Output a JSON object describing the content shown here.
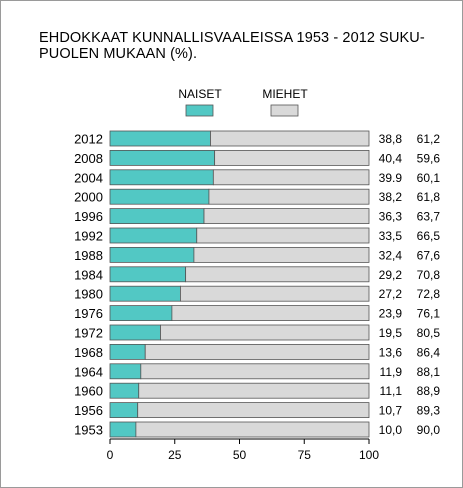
{
  "title_line1": "EHDOKKAAT KUNNALLISVAALEISSA 1953 - 2012 SUKU-",
  "title_line2": "PUOLEN MUKAAN (%).",
  "chart_data": {
    "type": "bar",
    "stacked": true,
    "orientation": "horizontal",
    "categories": [
      "2012",
      "2008",
      "2004",
      "2000",
      "1996",
      "1992",
      "1988",
      "1984",
      "1980",
      "1976",
      "1972",
      "1968",
      "1964",
      "1960",
      "1956",
      "1953"
    ],
    "series": [
      {
        "name": "NAISET",
        "color": "#52c8c4",
        "values": [
          38.8,
          40.4,
          39.9,
          38.2,
          36.3,
          33.5,
          32.4,
          29.2,
          27.2,
          23.9,
          19.5,
          13.6,
          11.9,
          11.1,
          10.7,
          10.0
        ],
        "labels": [
          "38,8",
          "40,4",
          "39.9",
          "38,2",
          "36,3",
          "33,5",
          "32,4",
          "29,2",
          "27,2",
          "23,9",
          "19,5",
          "13,6",
          "11,9",
          "11,1",
          "10,7",
          "10,0"
        ]
      },
      {
        "name": "MIEHET",
        "color": "#d9d9d9",
        "values": [
          61.2,
          59.6,
          60.1,
          61.8,
          63.7,
          66.5,
          67.6,
          70.8,
          72.8,
          76.1,
          80.5,
          86.4,
          88.1,
          88.9,
          89.3,
          90.0
        ],
        "labels": [
          "61,2",
          "59,6",
          "60,1",
          "61,8",
          "63,7",
          "66,5",
          "67,6",
          "70,8",
          "72,8",
          "76,1",
          "80,5",
          "86,4",
          "88,1",
          "88,9",
          "89,3",
          "90,0"
        ]
      }
    ],
    "xlim": [
      0,
      100
    ],
    "xticks": [
      "0",
      "25",
      "50",
      "75",
      "100"
    ],
    "legend": "top-center",
    "grid": false
  }
}
